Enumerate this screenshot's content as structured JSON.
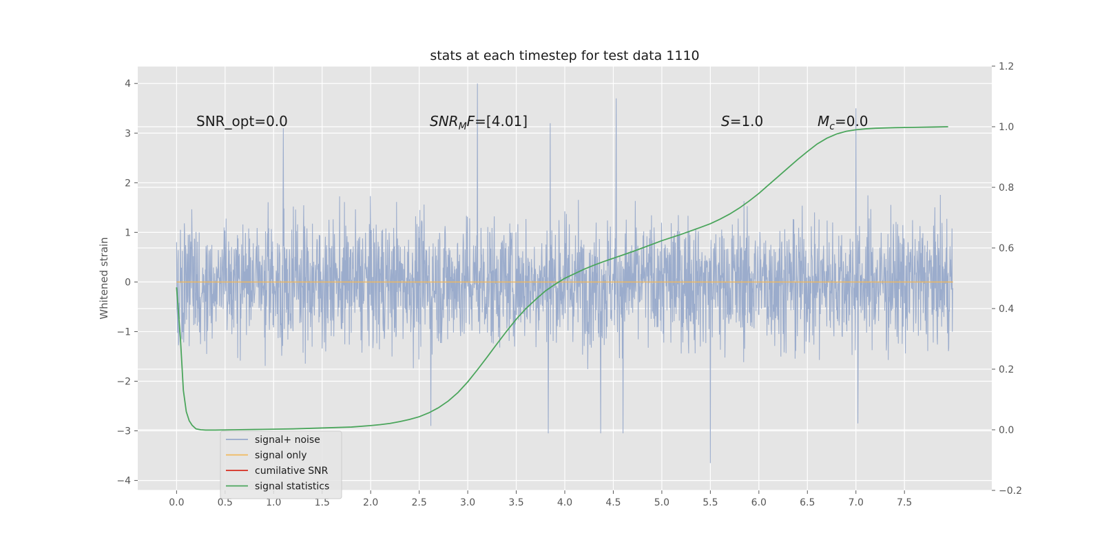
{
  "chart_data": {
    "type": "line",
    "title": "stats at each timestep for test data 1110",
    "xlabel": "",
    "ylabel": "Whitened strain",
    "y2label": "",
    "xlim": [
      -0.4,
      8.4
    ],
    "ylim": [
      -4.2,
      4.35
    ],
    "y2lim": [
      -0.2,
      1.2
    ],
    "xticks": [
      "0.0",
      "0.5",
      "1.0",
      "1.5",
      "2.0",
      "2.5",
      "3.0",
      "3.5",
      "4.0",
      "4.5",
      "5.0",
      "5.5",
      "6.0",
      "6.5",
      "7.0",
      "7.5"
    ],
    "yticks": [
      "4",
      "3",
      "2",
      "1",
      "0",
      "−1",
      "−2",
      "−3",
      "−4"
    ],
    "y2ticks": [
      "1.2",
      "1.0",
      "0.8",
      "0.6",
      "0.4",
      "0.2",
      "0.0",
      "−0.2"
    ],
    "grid": true,
    "legend_position": "lower-left",
    "annotations": {
      "snr_opt": "SNR_opt=0.0",
      "snr_mf_base": "SNR",
      "snr_mf_sub": "M",
      "snr_mf_mid": "F",
      "snr_mf_value": "=[4.01]",
      "s_var": "S",
      "s_value": "=1.0",
      "mc_base": "M",
      "mc_sub": "c",
      "mc_value": "=0.0"
    },
    "series": [
      {
        "name": "signal+ noise",
        "color": "#97a9ca",
        "axis": "left",
        "x_range": [
          0.0,
          8.0
        ],
        "typical_amplitude": 1.6,
        "notable_peaks": [
          [
            3.1,
            4.0
          ],
          [
            4.53,
            3.7
          ],
          [
            7.0,
            3.5
          ],
          [
            1.1,
            3.1
          ],
          [
            3.85,
            3.2
          ],
          [
            5.5,
            -3.65
          ],
          [
            3.83,
            -3.05
          ],
          [
            4.37,
            -3.05
          ],
          [
            4.6,
            -3.05
          ],
          [
            7.02,
            -2.85
          ],
          [
            2.62,
            -2.9
          ]
        ]
      },
      {
        "name": "signal only",
        "color": "#f0b85d",
        "axis": "left",
        "x": [
          0.0,
          8.0
        ],
        "values": [
          0.0,
          0.0
        ]
      },
      {
        "name": "cumilative SNR",
        "color": "#d62a1e",
        "axis": "right",
        "x": [],
        "values": []
      },
      {
        "name": "signal statistics",
        "color": "#4aa55b",
        "axis": "right",
        "x": [
          0.0,
          0.04,
          0.07,
          0.1,
          0.13,
          0.16,
          0.2,
          0.25,
          0.3,
          0.4,
          0.6,
          0.8,
          1.0,
          1.2,
          1.4,
          1.6,
          1.8,
          2.0,
          2.1,
          2.2,
          2.3,
          2.4,
          2.5,
          2.6,
          2.7,
          2.8,
          2.9,
          3.0,
          3.1,
          3.2,
          3.3,
          3.4,
          3.5,
          3.6,
          3.7,
          3.8,
          3.9,
          4.0,
          4.1,
          4.2,
          4.3,
          4.4,
          4.5,
          4.6,
          4.7,
          4.8,
          4.9,
          5.0,
          5.2,
          5.4,
          5.5,
          5.6,
          5.7,
          5.8,
          5.9,
          6.0,
          6.1,
          6.2,
          6.3,
          6.4,
          6.5,
          6.6,
          6.7,
          6.8,
          6.9,
          7.0,
          7.1,
          7.2,
          7.4,
          7.6,
          7.8,
          7.95
        ],
        "values": [
          0.47,
          0.3,
          0.13,
          0.06,
          0.03,
          0.015,
          0.003,
          0.0,
          -0.001,
          -0.001,
          0.0,
          0.001,
          0.002,
          0.003,
          0.005,
          0.007,
          0.009,
          0.014,
          0.017,
          0.021,
          0.027,
          0.034,
          0.043,
          0.056,
          0.073,
          0.095,
          0.123,
          0.158,
          0.198,
          0.24,
          0.283,
          0.325,
          0.365,
          0.4,
          0.43,
          0.458,
          0.48,
          0.5,
          0.515,
          0.53,
          0.543,
          0.555,
          0.566,
          0.577,
          0.588,
          0.6,
          0.612,
          0.624,
          0.645,
          0.668,
          0.68,
          0.695,
          0.712,
          0.732,
          0.755,
          0.78,
          0.808,
          0.836,
          0.864,
          0.892,
          0.918,
          0.943,
          0.962,
          0.976,
          0.985,
          0.99,
          0.993,
          0.995,
          0.997,
          0.998,
          0.999,
          1.0
        ]
      }
    ]
  }
}
